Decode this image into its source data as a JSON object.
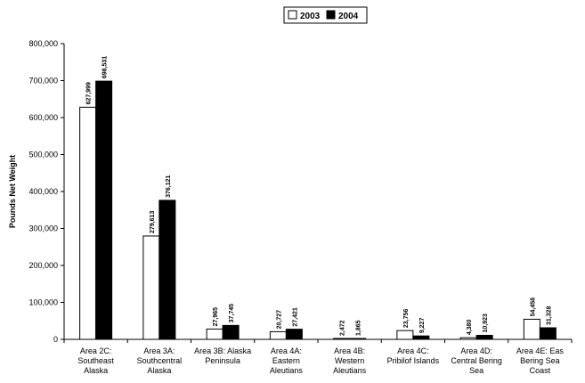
{
  "chart_data": {
    "type": "bar",
    "title": "",
    "ylabel": "Pounds Net Weight",
    "xlabel": "",
    "ylim": [
      0,
      800000
    ],
    "yticks": [
      0,
      100000,
      200000,
      300000,
      400000,
      500000,
      600000,
      700000,
      800000
    ],
    "ytick_labels": [
      "0",
      "100,000",
      "200,000",
      "300,000",
      "400,000",
      "500,000",
      "600,000",
      "700,000",
      "800,000"
    ],
    "legend_position": "top-center",
    "grid": false,
    "categories": [
      [
        "Area 2C:",
        "Southeast",
        "Alaska"
      ],
      [
        "Area 3A:",
        "Southcentral",
        "Alaska"
      ],
      [
        "Area 3B: Alaska",
        "Peninsula"
      ],
      [
        "Area 4A:",
        "Eastern",
        "Aleutians"
      ],
      [
        "Area 4B:",
        "Western",
        "Aleutians"
      ],
      [
        "Area 4C:",
        "Pribilof Islands"
      ],
      [
        "Area 4D:",
        "Central Bering",
        "Sea"
      ],
      [
        "Area 4E: Eas",
        "Bering Sea",
        "Coast"
      ]
    ],
    "series": [
      {
        "name": "2003",
        "color": "#ffffff",
        "values": [
          627999,
          279613,
          27965,
          20727,
          2472,
          23756,
          4380,
          54458
        ],
        "labels": [
          "627,999",
          "279,613",
          "27,965",
          "20,727",
          "2,472",
          "23,756",
          "4,380",
          "54,458"
        ]
      },
      {
        "name": "2004",
        "color": "#000000",
        "values": [
          698531,
          376121,
          37745,
          27421,
          1865,
          9227,
          10923,
          31328
        ],
        "labels": [
          "698,531",
          "376,121",
          "37,745",
          "27,421",
          "1,865",
          "9,227",
          "10,923",
          "31,328"
        ]
      }
    ]
  }
}
